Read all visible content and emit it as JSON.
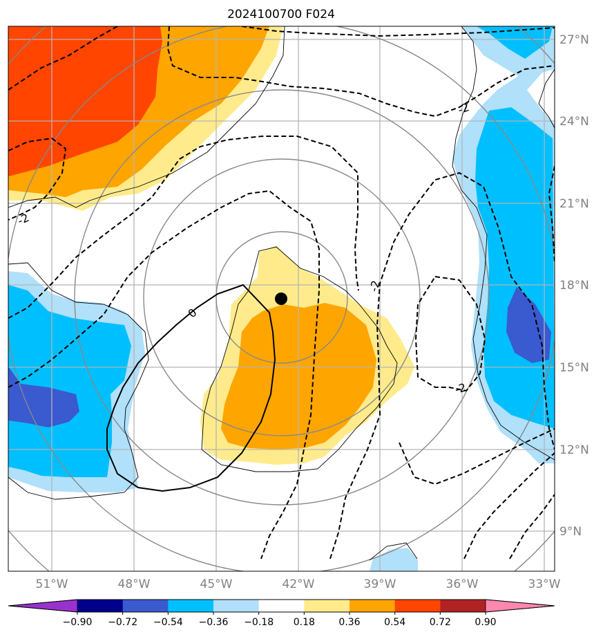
{
  "title": "2024100700 F024",
  "lat_labels": [
    "27°N",
    "24°N",
    "21°N",
    "18°N",
    "15°N",
    "12°N",
    "9°N"
  ],
  "lon_labels": [
    "51°W",
    "48°W",
    "45°W",
    "42°W",
    "39°W",
    "36°W",
    "33°W"
  ],
  "contour_labels": [
    "-2",
    "-2",
    "-2",
    "-2",
    "0"
  ],
  "colorbar": {
    "colors": [
      "#9932cc",
      "#00008b",
      "#3a5ad0",
      "#00bfff",
      "#b0e0fa",
      "#ffffff",
      "#ffeb8c",
      "#ffa500",
      "#ff4500",
      "#b22222",
      "#ff88b0"
    ],
    "tick_labels": [
      "−0.90",
      "−0.72",
      "−0.54",
      "−0.36",
      "−0.18",
      "0.18",
      "0.36",
      "0.54",
      "0.72",
      "0.90"
    ]
  },
  "marker": {
    "label": "storm center",
    "color": "#000000"
  }
}
